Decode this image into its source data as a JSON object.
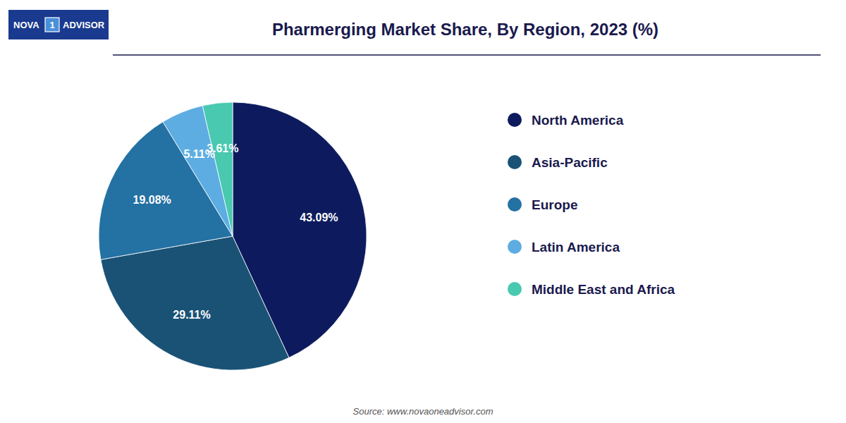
{
  "chart_data": {
    "type": "pie",
    "title": "Pharmerging Market Share, By Region, 2023 (%)",
    "categories": [
      "North America",
      "Asia-Pacific",
      "Europe",
      "Latin America",
      "Middle East and Africa"
    ],
    "values": [
      43.09,
      29.11,
      19.08,
      5.11,
      3.61
    ],
    "value_labels": [
      "43.09%",
      "29.11%",
      "19.08%",
      "5.11%",
      "3.61%"
    ],
    "colors": [
      "#0d1b5e",
      "#1a5276",
      "#2471a3",
      "#5dade2",
      "#48c9b0"
    ],
    "data_labels": true,
    "legend": "right",
    "annotations": [
      "Source: www.novaoneadvisor.com",
      "NOVA",
      "1",
      "ADVISOR"
    ]
  }
}
